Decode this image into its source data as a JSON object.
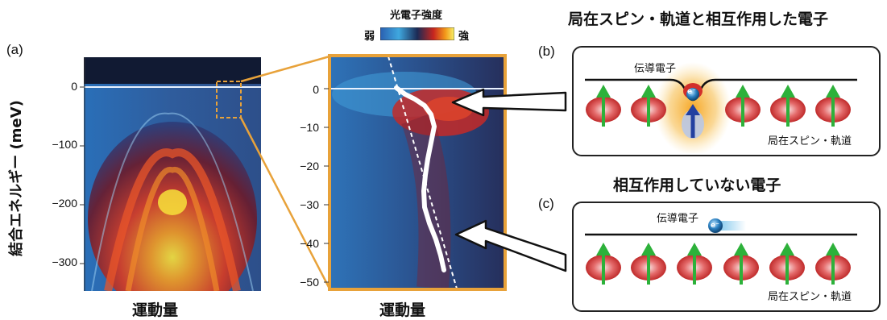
{
  "colorbar": {
    "title": "光電子強度",
    "weak": "弱",
    "strong": "強"
  },
  "panel_a": {
    "label": "(a)",
    "ylabel": "結合エネルギー (meV)",
    "yticks": [
      "0",
      "−100",
      "−200",
      "−300"
    ],
    "xlabel": "運動量"
  },
  "zoom": {
    "yticks": [
      "0",
      "−10",
      "−20",
      "−30",
      "−40",
      "−50"
    ],
    "xlabel": "運動量"
  },
  "panel_b": {
    "label": "(b)",
    "title": "局在スピン・軌道と相互作用した電子",
    "conduction_electron": "伝導電子",
    "localized": "局在スピン・軌道",
    "electron_symbol": "e⁻"
  },
  "panel_c": {
    "label": "(c)",
    "title": "相互作用していない電子",
    "conduction_electron": "伝導電子",
    "localized": "局在スピン・軌道",
    "electron_symbol": "e⁻"
  },
  "colors": {
    "accent_orange": "#e8a23a",
    "arrow_green": "#2db13a",
    "electron_blue": "#2a7fc0",
    "spin_red": "#d23a3a"
  }
}
